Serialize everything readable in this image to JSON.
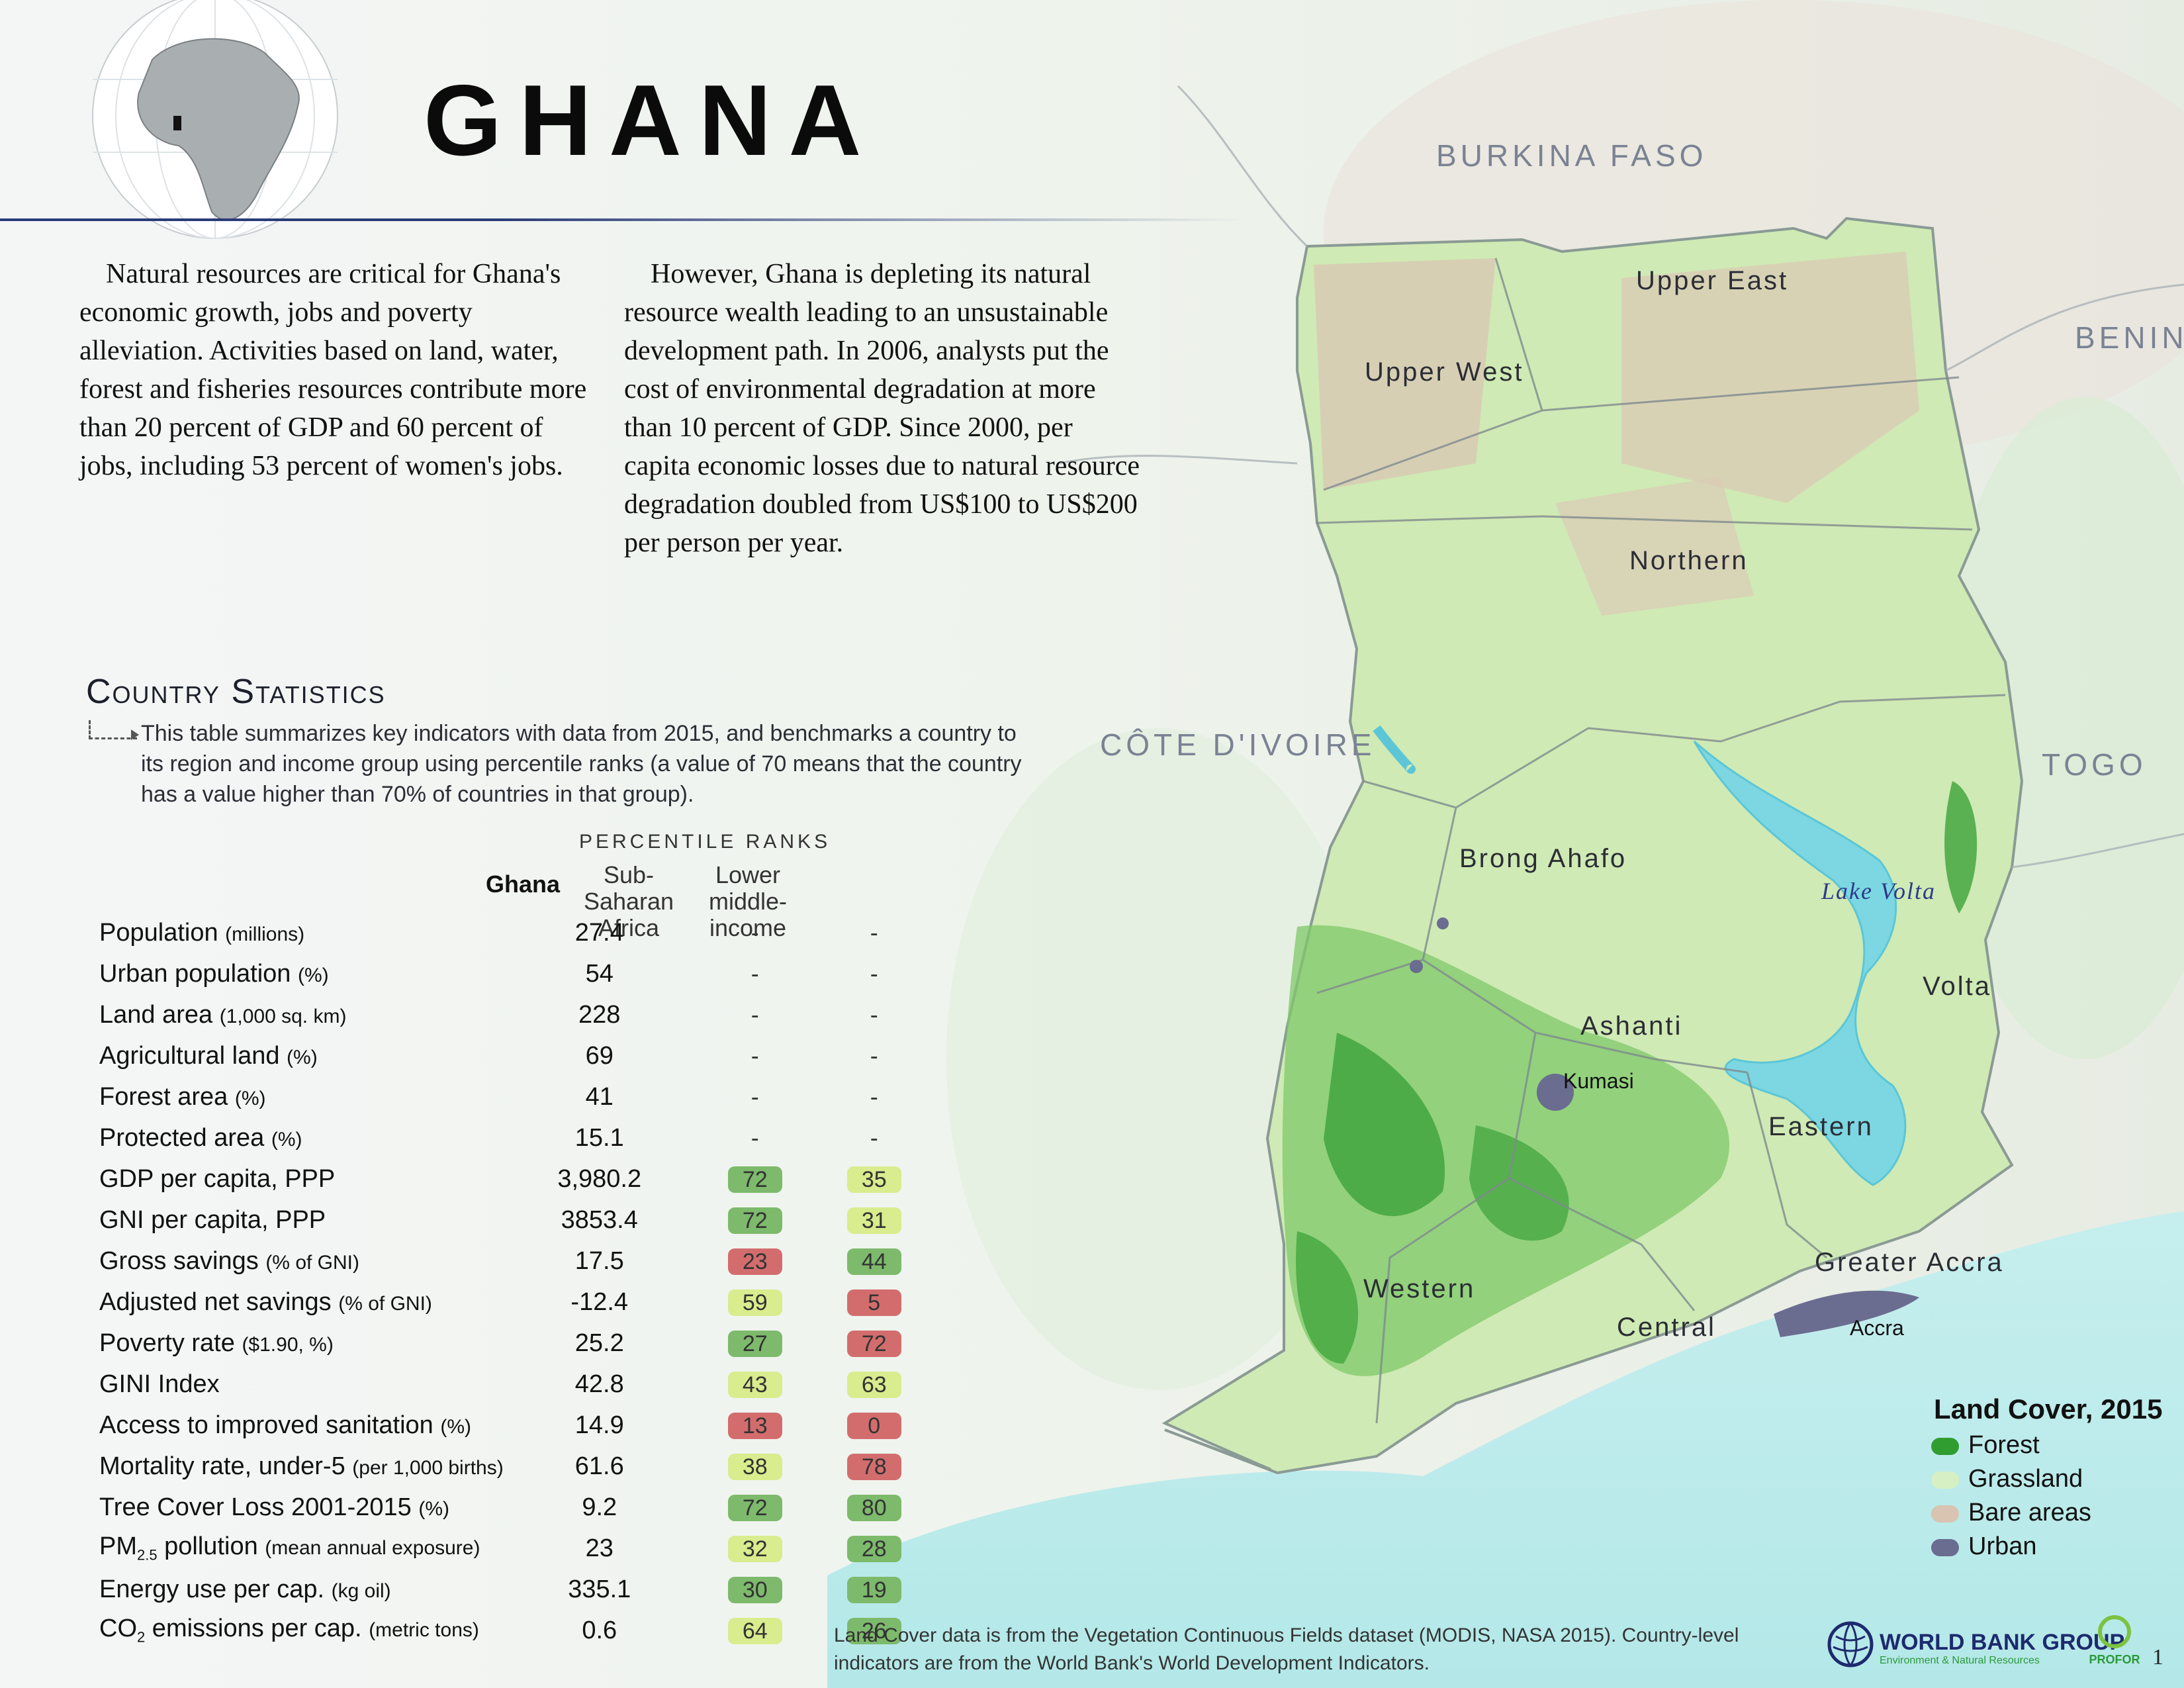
{
  "header": {
    "title": "GHANA"
  },
  "intro": {
    "paragraph1": "Natural resources are critical for Ghana's economic growth, jobs and poverty alleviation. Activities based on land, water, forest and fisheries resources contribute more than 20 percent of GDP and 60 percent of jobs, including 53 percent of women's jobs.",
    "paragraph2": "However, Ghana is depleting its natural resource wealth leading to an unsustainable development path. In 2006, analysts put the cost of environmental degradation at more than 10 percent of GDP. Since 2000, per capita economic losses due to natural resource degradation doubled from US$100 to US$200 per person per year."
  },
  "stats": {
    "title": "Country Statistics",
    "description": "This table summarizes key indicators with data from 2015, and benchmarks a country to its region and income group using percentile ranks (a value of 70 means that the country has a value higher than 70% of countries in that group).",
    "percentile_header": "PERCENTILE RANKS",
    "col_country": "Ghana",
    "col_region": "Sub-Saharan Africa",
    "col_income": "Lower middle-income",
    "rows": [
      {
        "label": "Population",
        "unit": "(millions)",
        "value": "27.4",
        "ssa": "-",
        "lmi": "-"
      },
      {
        "label": "Urban population",
        "unit": "(%)",
        "value": "54",
        "ssa": "-",
        "lmi": "-"
      },
      {
        "label": "Land area",
        "unit": "(1,000 sq. km)",
        "value": "228",
        "ssa": "-",
        "lmi": "-"
      },
      {
        "label": "Agricultural land",
        "unit": "(%)",
        "value": "69",
        "ssa": "-",
        "lmi": "-"
      },
      {
        "label": "Forest area",
        "unit": "(%)",
        "value": "41",
        "ssa": "-",
        "lmi": "-"
      },
      {
        "label": "Protected area",
        "unit": "(%)",
        "value": "15.1",
        "ssa": "-",
        "lmi": "-"
      },
      {
        "label": "GDP per capita, PPP",
        "unit": "",
        "value": "3,980.2",
        "ssa": "72",
        "lmi": "35",
        "ssa_color": "#7dba6c",
        "lmi_color": "#d9ec8e"
      },
      {
        "label": "GNI per capita, PPP",
        "unit": "",
        "value": "3853.4",
        "ssa": "72",
        "lmi": "31",
        "ssa_color": "#7dba6c",
        "lmi_color": "#d9ec8e"
      },
      {
        "label": "Gross savings",
        "unit": "(% of GNI)",
        "value": "17.5",
        "ssa": "23",
        "lmi": "44",
        "ssa_color": "#d36d6d",
        "lmi_color": "#7dba6c"
      },
      {
        "label": "Adjusted net savings",
        "unit": "(% of GNI)",
        "value": "-12.4",
        "ssa": "59",
        "lmi": "5",
        "ssa_color": "#d9ec8e",
        "lmi_color": "#d36d6d"
      },
      {
        "label": "Poverty rate",
        "unit": "($1.90, %)",
        "value": "25.2",
        "ssa": "27",
        "lmi": "72",
        "ssa_color": "#7dba6c",
        "lmi_color": "#d36d6d"
      },
      {
        "label": "GINI Index",
        "unit": "",
        "value": "42.8",
        "ssa": "43",
        "lmi": "63",
        "ssa_color": "#d9ec8e",
        "lmi_color": "#d9ec8e"
      },
      {
        "label": "Access to improved sanitation",
        "unit": "(%)",
        "value": "14.9",
        "ssa": "13",
        "lmi": "0",
        "ssa_color": "#d36d6d",
        "lmi_color": "#d36d6d"
      },
      {
        "label": "Mortality rate, under-5",
        "unit": "(per 1,000 births)",
        "value": "61.6",
        "ssa": "38",
        "lmi": "78",
        "ssa_color": "#d9ec8e",
        "lmi_color": "#d36d6d"
      },
      {
        "label": "Tree Cover Loss 2001-2015",
        "unit": "(%)",
        "value": "9.2",
        "ssa": "72",
        "lmi": "80",
        "ssa_color": "#7dba6c",
        "lmi_color": "#7dba6c"
      },
      {
        "label": "PM",
        "sub": "2.5",
        "label_rest": " pollution",
        "unit": "(mean annual exposure)",
        "value": "23",
        "ssa": "32",
        "lmi": "28",
        "ssa_color": "#d9ec8e",
        "lmi_color": "#7dba6c"
      },
      {
        "label": "Energy use per cap.",
        "unit": "(kg oil)",
        "value": "335.1",
        "ssa": "30",
        "lmi": "19",
        "ssa_color": "#7dba6c",
        "lmi_color": "#7dba6c"
      },
      {
        "label": "CO",
        "sub": "2",
        "label_rest": " emissions per cap.",
        "unit": "(metric tons)",
        "value": "0.6",
        "ssa": "64",
        "lmi": "26",
        "ssa_color": "#d9ec8e",
        "lmi_color": "#7dba6c"
      }
    ]
  },
  "map": {
    "countries": {
      "burkina": "BURKINA FASO",
      "benin": "BENIN",
      "togo": "TOGO",
      "cote": "CÔTE D'IVOIRE"
    },
    "regions": {
      "upper_east": "Upper East",
      "upper_west": "Upper West",
      "northern": "Northern",
      "brong_ahafo": "Brong Ahafo",
      "ashanti": "Ashanti",
      "volta": "Volta",
      "eastern": "Eastern",
      "western": "Western",
      "central": "Central",
      "greater_accra": "Greater Accra"
    },
    "lake": "Lake Volta",
    "cities": {
      "kumasi": "Kumasi",
      "accra": "Accra"
    }
  },
  "legend": {
    "title": "Land Cover, 2015",
    "items": [
      {
        "label": "Forest",
        "color": "#2f9d2f"
      },
      {
        "label": "Grassland",
        "color": "#d6f0c4"
      },
      {
        "label": "Bare areas",
        "color": "#d8c4b0"
      },
      {
        "label": "Urban",
        "color": "#6a6c90"
      }
    ]
  },
  "footer": {
    "source": "Land Cover data is from the Vegetation Continuous Fields dataset (MODIS, NASA 2015). Country-level indicators are from the World Bank's World Development Indicators.",
    "wbg_name": "WORLD BANK GROUP",
    "wbg_sub": "Environment & Natural Resources",
    "profor": "PROFOR",
    "page_number": "1"
  }
}
